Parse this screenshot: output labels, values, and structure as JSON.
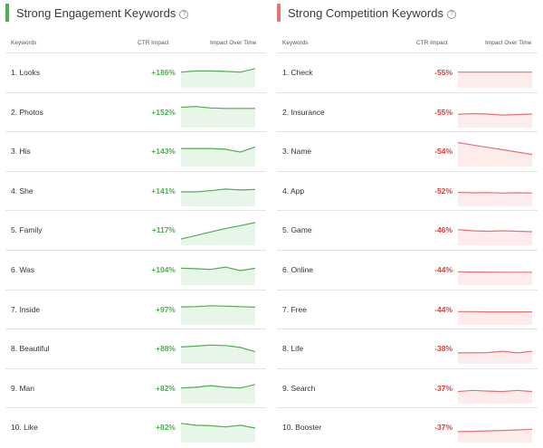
{
  "colors": {
    "positive": "#4caf50",
    "positive_fill": "#e8f5e9",
    "negative": "#e57373",
    "negative_fill": "#fdecec",
    "neg_text": "#e53935"
  },
  "icons": {
    "help": "help-circle-icon"
  },
  "engagement": {
    "title": "Strong Engagement Keywords",
    "help_glyph": "?",
    "headers": {
      "keyword": "Keywords",
      "ctr": "CTR Impact",
      "impact": "Impact Over Time"
    },
    "rows": [
      {
        "keyword": "1. Looks",
        "ctr": "+186%",
        "trend": [
          0.55,
          0.6,
          0.6,
          0.58,
          0.55,
          0.7
        ]
      },
      {
        "keyword": "2. Photos",
        "ctr": "+152%",
        "trend": [
          0.75,
          0.78,
          0.72,
          0.7,
          0.7,
          0.7
        ]
      },
      {
        "keyword": "3. His",
        "ctr": "+143%",
        "trend": [
          0.65,
          0.65,
          0.65,
          0.62,
          0.5,
          0.72
        ]
      },
      {
        "keyword": "4. She",
        "ctr": "+141%",
        "trend": [
          0.5,
          0.5,
          0.55,
          0.62,
          0.58,
          0.6
        ]
      },
      {
        "keyword": "5. Family",
        "ctr": "+117%",
        "trend": [
          0.15,
          0.3,
          0.45,
          0.6,
          0.72,
          0.85
        ]
      },
      {
        "keyword": "6. Was",
        "ctr": "+104%",
        "trend": [
          0.6,
          0.58,
          0.55,
          0.65,
          0.5,
          0.6
        ]
      },
      {
        "keyword": "7. Inside",
        "ctr": "+97%",
        "trend": [
          0.65,
          0.66,
          0.7,
          0.68,
          0.66,
          0.64
        ]
      },
      {
        "keyword": "8. Beautiful",
        "ctr": "+88%",
        "trend": [
          0.6,
          0.64,
          0.68,
          0.66,
          0.58,
          0.4
        ]
      },
      {
        "keyword": "9. Man",
        "ctr": "+82%",
        "trend": [
          0.55,
          0.58,
          0.65,
          0.58,
          0.55,
          0.7
        ]
      },
      {
        "keyword": "10. Like",
        "ctr": "+82%",
        "trend": [
          0.7,
          0.62,
          0.6,
          0.55,
          0.62,
          0.5
        ]
      }
    ]
  },
  "competition": {
    "title": "Strong Competition Keywords",
    "help_glyph": "?",
    "headers": {
      "keyword": "Keywords",
      "ctr": "CTR Impact",
      "impact": "Impact Over Time"
    },
    "rows": [
      {
        "keyword": "1. Check",
        "ctr": "-55%",
        "trend": [
          0.55,
          0.55,
          0.55,
          0.55,
          0.55,
          0.55
        ]
      },
      {
        "keyword": "2. Insurance",
        "ctr": "-55%",
        "trend": [
          0.45,
          0.48,
          0.46,
          0.42,
          0.44,
          0.46
        ]
      },
      {
        "keyword": "3. Name",
        "ctr": "-54%",
        "trend": [
          0.9,
          0.8,
          0.7,
          0.6,
          0.5,
          0.4
        ]
      },
      {
        "keyword": "4. App",
        "ctr": "-52%",
        "trend": [
          0.48,
          0.46,
          0.47,
          0.45,
          0.46,
          0.45
        ]
      },
      {
        "keyword": "5. Game",
        "ctr": "-46%",
        "trend": [
          0.55,
          0.5,
          0.48,
          0.5,
          0.48,
          0.46
        ]
      },
      {
        "keyword": "6. Online",
        "ctr": "-44%",
        "trend": [
          0.45,
          0.44,
          0.44,
          0.43,
          0.43,
          0.43
        ]
      },
      {
        "keyword": "7. Free",
        "ctr": "-44%",
        "trend": [
          0.45,
          0.45,
          0.44,
          0.44,
          0.44,
          0.44
        ]
      },
      {
        "keyword": "8. Life",
        "ctr": "-38%",
        "trend": [
          0.35,
          0.35,
          0.36,
          0.42,
          0.35,
          0.42
        ]
      },
      {
        "keyword": "9. Search",
        "ctr": "-37%",
        "trend": [
          0.4,
          0.45,
          0.42,
          0.4,
          0.45,
          0.4
        ]
      },
      {
        "keyword": "10. Booster",
        "ctr": "-37%",
        "trend": [
          0.35,
          0.36,
          0.38,
          0.4,
          0.42,
          0.45
        ]
      }
    ]
  }
}
